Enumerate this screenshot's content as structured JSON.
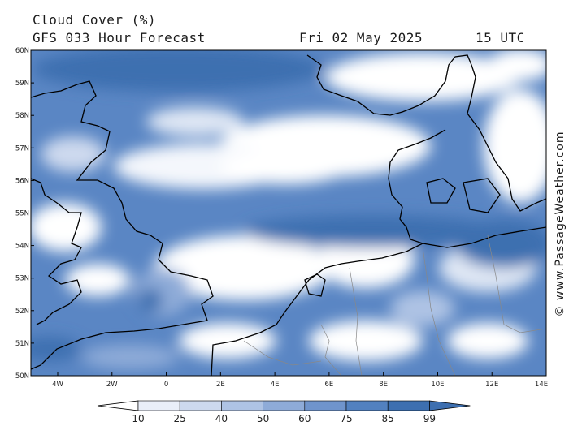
{
  "header": {
    "title": "Cloud Cover (%)",
    "model": "GFS 033 Hour Forecast",
    "date": "Fri 02 May 2025",
    "time": "15 UTC"
  },
  "credit": "© www.PassageWeather.com",
  "map": {
    "lat_labels": [
      "60N",
      "59N",
      "58N",
      "57N",
      "56N",
      "55N",
      "54N",
      "53N",
      "52N",
      "51N",
      "50N"
    ],
    "lon_labels": [
      "4W",
      "2W",
      "0",
      "2E",
      "4E",
      "6E",
      "8E",
      "10E",
      "12E",
      "14E"
    ],
    "colors": {
      "land_outline": "#000000",
      "border": "#888888",
      "cloud_scale": [
        "#ffffff",
        "#e9eef8",
        "#cdd9ee",
        "#aec3e4",
        "#8eabd8",
        "#6f94cc",
        "#5281c0",
        "#3d6fb0"
      ]
    }
  },
  "legend": {
    "labels": [
      "10",
      "25",
      "40",
      "50",
      "60",
      "75",
      "85",
      "99"
    ]
  }
}
